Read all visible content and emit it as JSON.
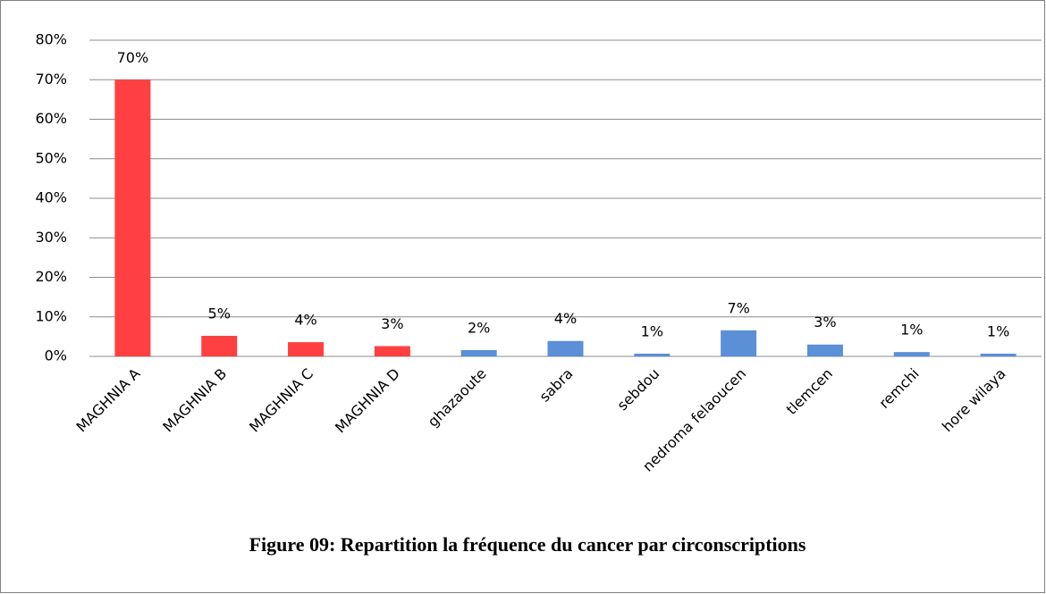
{
  "chart_data": {
    "type": "bar",
    "title": "Figure 09: Repartition la fréquence du cancer par circonscriptions",
    "categories": [
      "MAGHNIA A",
      "MAGHNIA B",
      "MAGHNIA C",
      "MAGHNIA D",
      "ghazaoute",
      "sabra",
      "sebdou",
      "nedroma felaoucen",
      "tlemcen",
      "remchi",
      "hore wilaya"
    ],
    "values": [
      70,
      5.2,
      3.6,
      2.6,
      1.6,
      3.9,
      0.7,
      6.6,
      3.0,
      1.1,
      0.7
    ],
    "value_labels": [
      "70%",
      "5%",
      "4%",
      "3%",
      "2%",
      "4%",
      "1%",
      "7%",
      "3%",
      "1%",
      "1%"
    ],
    "colors": [
      "#ff4040",
      "#ff4040",
      "#ff4040",
      "#ff4040",
      "#5b8fd6",
      "#5b8fd6",
      "#5b8fd6",
      "#5b8fd6",
      "#5b8fd6",
      "#5b8fd6",
      "#5b8fd6"
    ],
    "ylim": [
      0,
      80
    ],
    "yticks": [
      {
        "value": 0,
        "label": "0%"
      },
      {
        "value": 10,
        "label": "10%"
      },
      {
        "value": 20,
        "label": "20%"
      },
      {
        "value": 30,
        "label": "30%"
      },
      {
        "value": 40,
        "label": "40%"
      },
      {
        "value": 50,
        "label": "50%"
      },
      {
        "value": 60,
        "label": "60%"
      },
      {
        "value": 70,
        "label": "70%"
      },
      {
        "value": 80,
        "label": "80%"
      }
    ],
    "grid": true
  }
}
